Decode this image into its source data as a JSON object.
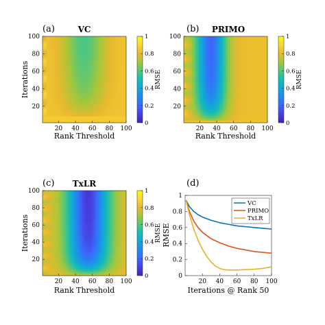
{
  "panels": [
    {
      "id": "a",
      "panel_label": "(a)",
      "title": "VC",
      "xlabel": "Rank Threshold",
      "ylabel": "Iterations",
      "colorbar_label": "RMSE",
      "xticks": [
        "20",
        "40",
        "60",
        "80",
        "100"
      ],
      "yticks": [
        "20",
        "40",
        "60",
        "80",
        "100"
      ],
      "cbticks": [
        "0",
        "0.2",
        "0.4",
        "0.6",
        "0.8",
        "1"
      ]
    },
    {
      "id": "b",
      "panel_label": "(b)",
      "title": "PRIMO",
      "xlabel": "Rank Threshold",
      "ylabel": "Iterations",
      "colorbar_label": "RMSE",
      "xticks": [
        "20",
        "40",
        "60",
        "80",
        "100"
      ],
      "yticks": [
        "20",
        "40",
        "60",
        "80",
        "100"
      ],
      "cbticks": [
        "0",
        "0.2",
        "0.4",
        "0.6",
        "0.8",
        "1"
      ]
    },
    {
      "id": "c",
      "panel_label": "(c)",
      "title": "TxLR",
      "xlabel": "Rank Threshold",
      "ylabel": "Iterations",
      "colorbar_label": "RMSE",
      "xticks": [
        "20",
        "40",
        "60",
        "80",
        "100"
      ],
      "yticks": [
        "20",
        "40",
        "60",
        "80",
        "100"
      ],
      "cbticks": [
        "0",
        "0.2",
        "0.4",
        "0.6",
        "0.8",
        "1"
      ]
    },
    {
      "id": "d",
      "panel_label": "(d)",
      "xlabel": "Iterations @ Rank 50",
      "ylabel": "RMSE",
      "xticks": [
        "20",
        "40",
        "60",
        "80",
        "100"
      ],
      "yticks": [
        "0",
        "0.2",
        "0.4",
        "0.6",
        "0.8",
        "1"
      ]
    }
  ],
  "chart_data": [
    {
      "type": "heatmap",
      "panel": "a",
      "title": "VC",
      "xlabel": "Rank Threshold",
      "ylabel": "Iterations",
      "colorbar_label": "RMSE",
      "xlim": [
        1,
        100
      ],
      "ylim": [
        1,
        100
      ],
      "clim": [
        0,
        1
      ],
      "colormap": "parula",
      "model": "vc"
    },
    {
      "type": "heatmap",
      "panel": "b",
      "title": "PRIMO",
      "xlabel": "Rank Threshold",
      "ylabel": "Iterations",
      "colorbar_label": "RMSE",
      "xlim": [
        1,
        100
      ],
      "ylim": [
        1,
        100
      ],
      "clim": [
        0,
        1
      ],
      "colormap": "parula",
      "model": "primo"
    },
    {
      "type": "heatmap",
      "panel": "c",
      "title": "TxLR",
      "xlabel": "Rank Threshold",
      "ylabel": "Iterations",
      "colorbar_label": "RMSE",
      "xlim": [
        1,
        100
      ],
      "ylim": [
        1,
        100
      ],
      "clim": [
        0,
        1
      ],
      "colormap": "parula",
      "model": "txlr"
    },
    {
      "type": "line",
      "panel": "d",
      "xlabel": "Iterations @ Rank 50",
      "ylabel": "RMSE",
      "xlim": [
        0,
        100
      ],
      "ylim": [
        0,
        1
      ],
      "legend_position": "top-right",
      "series": [
        {
          "name": "VC",
          "color": "#0072BD",
          "x": [
            1,
            5,
            10,
            15,
            20,
            30,
            40,
            50,
            60,
            70,
            80,
            90,
            100
          ],
          "y": [
            0.94,
            0.86,
            0.8,
            0.76,
            0.73,
            0.69,
            0.66,
            0.64,
            0.62,
            0.61,
            0.6,
            0.59,
            0.58
          ]
        },
        {
          "name": "PRIMO",
          "color": "#D95319",
          "x": [
            1,
            5,
            10,
            15,
            20,
            30,
            40,
            50,
            60,
            70,
            80,
            90,
            100
          ],
          "y": [
            0.94,
            0.8,
            0.68,
            0.6,
            0.54,
            0.46,
            0.41,
            0.37,
            0.34,
            0.32,
            0.3,
            0.29,
            0.28
          ]
        },
        {
          "name": "TxLR",
          "color": "#EDB120",
          "x": [
            1,
            5,
            10,
            15,
            20,
            25,
            30,
            35,
            40,
            45,
            50,
            60,
            70,
            80,
            90,
            100
          ],
          "y": [
            0.94,
            0.76,
            0.58,
            0.44,
            0.33,
            0.24,
            0.17,
            0.12,
            0.09,
            0.075,
            0.07,
            0.07,
            0.075,
            0.08,
            0.09,
            0.11
          ]
        }
      ]
    }
  ]
}
